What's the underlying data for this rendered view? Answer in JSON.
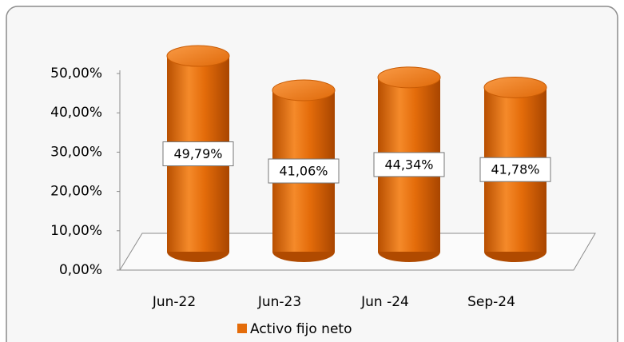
{
  "chart_data": {
    "type": "bar",
    "categories": [
      "Jun-22",
      "Jun-23",
      "Jun -24",
      "Sep-24"
    ],
    "series": [
      {
        "name": "Activo fijo neto",
        "color": "#e46c0a",
        "values": [
          49.79,
          41.06,
          44.34,
          41.78
        ],
        "value_labels": [
          "49,79%",
          "41,06%",
          "44,34%",
          "41,78%"
        ]
      }
    ],
    "ylim": [
      0,
      50
    ],
    "yticks": [
      {
        "value": 0,
        "label": "0,00%"
      },
      {
        "value": 10,
        "label": "10,00%"
      },
      {
        "value": 20,
        "label": "20,00%"
      },
      {
        "value": 30,
        "label": "30,00%"
      },
      {
        "value": 40,
        "label": "40,00%"
      },
      {
        "value": 50,
        "label": "50,00%"
      }
    ],
    "legend": "bottom"
  }
}
